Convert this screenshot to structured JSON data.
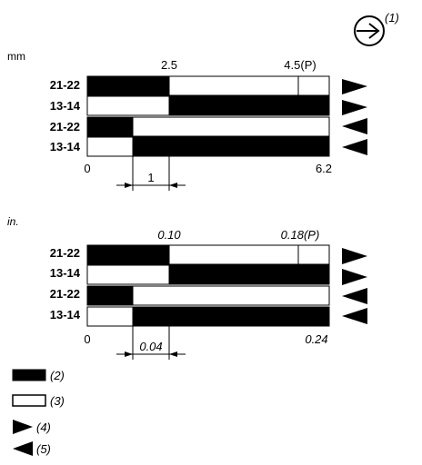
{
  "symbol_label": "(1)",
  "mm_section": {
    "unit": "mm",
    "rows": [
      "21-22",
      "13-14",
      "21-22",
      "13-14"
    ],
    "ticks_top": [
      "2.5",
      "4.5(P)"
    ],
    "tick_zero": "0",
    "tick_end": "6.2",
    "dim_label": "1"
  },
  "inch_section": {
    "unit": "in.",
    "rows": [
      "21-22",
      "13-14",
      "21-22",
      "13-14"
    ],
    "ticks_top": [
      "0.10",
      "0.18(P)"
    ],
    "tick_zero": "0",
    "tick_end": "0.24",
    "dim_label": "0.04"
  },
  "legend": {
    "closed": "(2)",
    "open": "(3)",
    "forward": "(4)",
    "return": "(5)"
  },
  "colors": {
    "closed": "#000000",
    "open": "#ffffff"
  }
}
